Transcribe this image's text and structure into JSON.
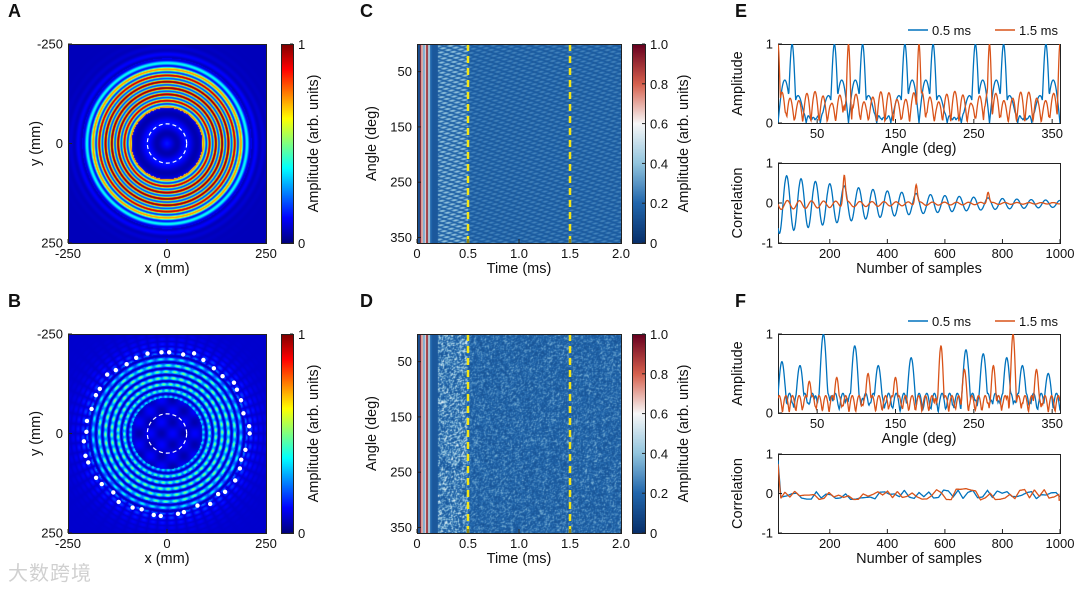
{
  "watermark": "大数跨境",
  "colors": {
    "series_0_5": "#0072BD",
    "series_1_5": "#D95319",
    "marker_line": "#F5E614"
  },
  "chart_data": [
    {
      "panel": "A",
      "type": "heatmap",
      "title": "",
      "xlabel": "x (mm)",
      "ylabel": "y (mm)",
      "xlim": [
        -250,
        250
      ],
      "ylim": [
        -250,
        250
      ],
      "xticks": [
        "-250",
        "0",
        "250"
      ],
      "yticks": [
        "250",
        "0",
        "-250"
      ],
      "colorbar": {
        "label": "Amplitude (arb. units)",
        "range": [
          0,
          1
        ],
        "ticks": [
          "1",
          "0"
        ],
        "colormap": "jet"
      },
      "ring_inner_mm": 80,
      "ring_outer_mm": 200,
      "ring_period_mm": 16,
      "dashed_circle_radius_mm": 50
    },
    {
      "panel": "B",
      "type": "heatmap",
      "title": "",
      "xlabel": "x (mm)",
      "ylabel": "y (mm)",
      "xlim": [
        -250,
        250
      ],
      "ylim": [
        -250,
        250
      ],
      "xticks": [
        "-250",
        "0",
        "250"
      ],
      "yticks": [
        "250",
        "0",
        "-250"
      ],
      "colorbar": {
        "label": "Amplitude (arb. units)",
        "range": [
          0,
          1
        ],
        "ticks": [
          "1",
          "0"
        ],
        "colormap": "jet"
      },
      "ring_inner_mm": 80,
      "ring_outer_mm": 200,
      "peak_amplitude": 0.5,
      "dashed_circle_radius_mm": 50,
      "transducer_count": 44,
      "transducer_radius_mm": 205
    },
    {
      "panel": "C",
      "type": "heatmap",
      "xlabel": "Time (ms)",
      "ylabel": "Angle (deg)",
      "xlim": [
        0,
        2.0
      ],
      "ylim": [
        0,
        360
      ],
      "xticks": [
        "0",
        "0.5",
        "1.0",
        "1.5",
        "2.0"
      ],
      "yticks": [
        "50",
        "150",
        "250",
        "350"
      ],
      "colorbar": {
        "label": "Amplitude (arb. units)",
        "range": [
          0,
          1
        ],
        "ticks": [
          "1.0",
          "0.8",
          "0.6",
          "0.4",
          "0.2",
          "0"
        ],
        "colormap": "blue-white-red"
      },
      "marker_times_ms": [
        0.5,
        1.5
      ],
      "texture": "regular"
    },
    {
      "panel": "D",
      "type": "heatmap",
      "xlabel": "Time (ms)",
      "ylabel": "Angle (deg)",
      "xlim": [
        0,
        2.0
      ],
      "ylim": [
        0,
        360
      ],
      "xticks": [
        "0",
        "0.5",
        "1.0",
        "1.5",
        "2.0"
      ],
      "yticks": [
        "50",
        "150",
        "250",
        "350"
      ],
      "colorbar": {
        "label": "Amplitude (arb. units)",
        "range": [
          0,
          1
        ],
        "ticks": [
          "1.0",
          "0.8",
          "0.6",
          "0.4",
          "0.2",
          "0"
        ],
        "colormap": "blue-white-red"
      },
      "marker_times_ms": [
        0.5,
        1.5
      ],
      "texture": "random"
    },
    {
      "panel": "E-top",
      "type": "line",
      "xlabel": "Angle (deg)",
      "ylabel": "Amplitude",
      "xlim": [
        0,
        360
      ],
      "ylim": [
        0,
        1
      ],
      "xticks": [
        "50",
        "150",
        "250",
        "350"
      ],
      "yticks": [
        "1",
        "0"
      ],
      "legend": {
        "placement": "top-right",
        "entries": [
          "0.5 ms",
          "1.5 ms"
        ]
      },
      "series": [
        {
          "name": "0.5 ms",
          "peaks_deg": [
            18,
            72,
            108,
            162,
            198,
            252,
            288,
            342
          ],
          "sidelobe": 0.57
        },
        {
          "name": "1.5 ms",
          "peaks_deg": [
            0,
            90,
            180,
            270,
            360
          ],
          "sidelobe": 0.4
        }
      ]
    },
    {
      "panel": "E-bottom",
      "type": "line",
      "xlabel": "Number of samples",
      "ylabel": "Correlation",
      "xlim": [
        20,
        1000
      ],
      "ylim": [
        -1,
        1
      ],
      "xticks": [
        "200",
        "400",
        "600",
        "800",
        "1000"
      ],
      "yticks": [
        "1",
        "0",
        "-1"
      ],
      "series": [
        {
          "name": "0.5 ms",
          "period_samples": 50,
          "initial_amplitude": 0.7,
          "decay_samples": 450
        },
        {
          "name": "1.5 ms",
          "spike_samples": [
            250,
            500,
            750
          ],
          "spike_values": [
            0.75,
            0.5,
            0.3
          ],
          "ripple": 0.12
        }
      ]
    },
    {
      "panel": "F-top",
      "type": "line",
      "xlabel": "Angle (deg)",
      "ylabel": "Amplitude",
      "xlim": [
        0,
        360
      ],
      "ylim": [
        0,
        1
      ],
      "xticks": [
        "50",
        "150",
        "250",
        "350"
      ],
      "yticks": [
        "1",
        "0"
      ],
      "legend": {
        "placement": "top-right",
        "entries": [
          "0.5 ms",
          "1.5 ms"
        ]
      },
      "series": [
        {
          "name": "0.5 ms",
          "peaks_deg": [
            5,
            28,
            58,
            98,
            128,
            170,
            240,
            262,
            292,
            312,
            345
          ],
          "peak_values": [
            0.65,
            0.6,
            1.0,
            0.85,
            0.6,
            0.7,
            0.8,
            0.75,
            0.7,
            0.6,
            0.5
          ]
        },
        {
          "name": "1.5 ms",
          "peaks_deg": [
            40,
            75,
            115,
            150,
            208,
            238,
            275,
            300,
            330
          ],
          "peak_values": [
            0.4,
            0.45,
            0.5,
            0.45,
            0.85,
            0.55,
            0.6,
            1.0,
            0.55
          ]
        }
      ]
    },
    {
      "panel": "F-bottom",
      "type": "line",
      "xlabel": "Number of samples",
      "ylabel": "Correlation",
      "xlim": [
        20,
        1000
      ],
      "ylim": [
        -1,
        1
      ],
      "xticks": [
        "200",
        "400",
        "600",
        "800",
        "1000"
      ],
      "yticks": [
        "1",
        "0",
        "-1"
      ],
      "series": [
        {
          "name": "0.5 ms",
          "noise_amplitude": 0.12
        },
        {
          "name": "1.5 ms",
          "noise_amplitude": 0.15
        }
      ]
    }
  ],
  "panel_letters": [
    "A",
    "B",
    "C",
    "D",
    "E",
    "F"
  ]
}
